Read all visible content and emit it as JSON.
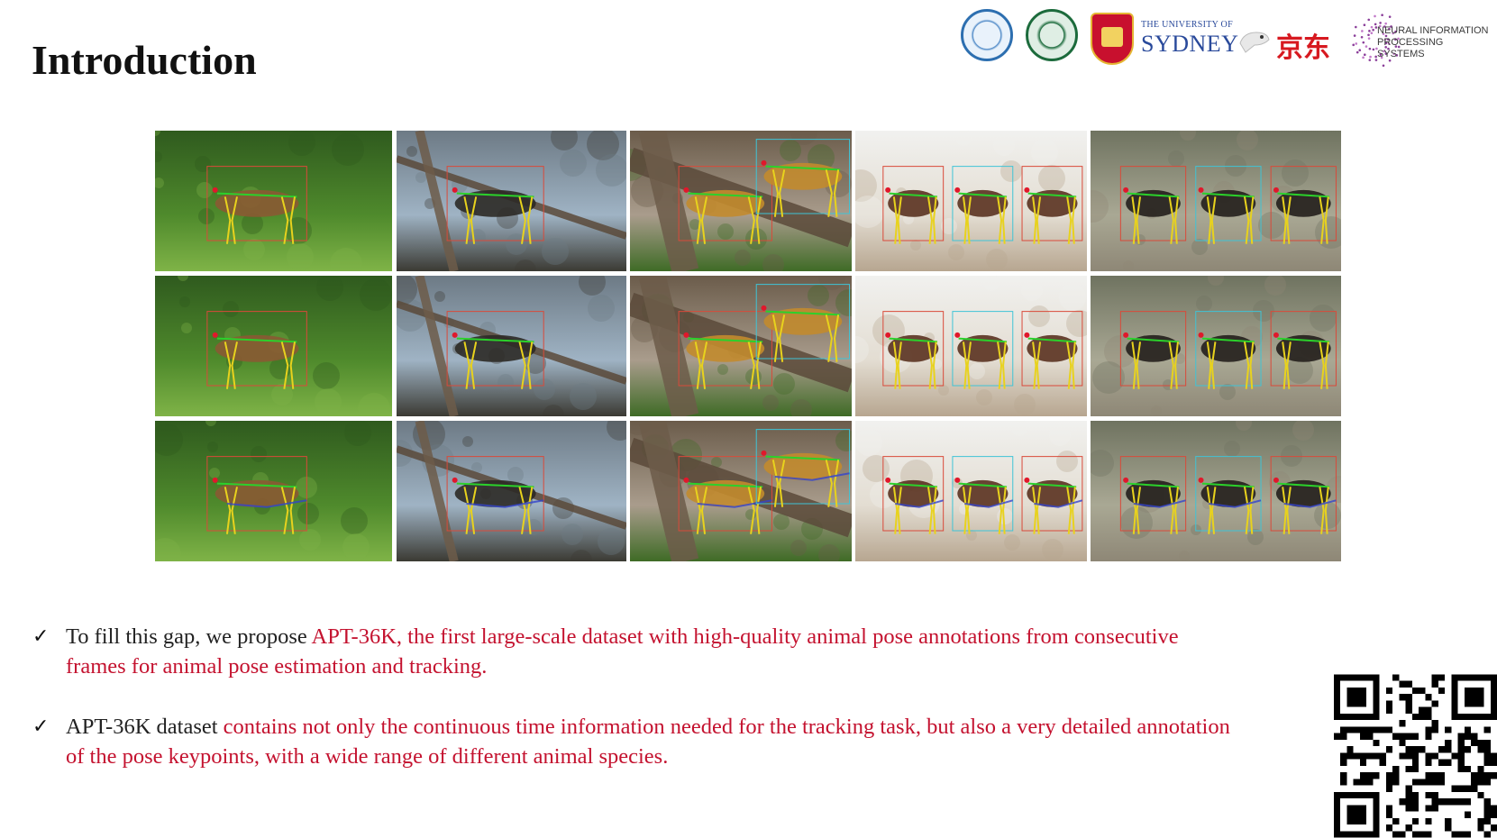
{
  "slide": {
    "title": "Introduction"
  },
  "logos": {
    "university_of_sydney_line1": "THE UNIVERSITY OF",
    "university_of_sydney_line2": "SYDNEY",
    "jd_text": "京东",
    "neurips_line1": "NEURAL INFORMATION",
    "neurips_line2": "PROCESSING SYSTEMS"
  },
  "figure": {
    "columns": [
      "deer",
      "monkey",
      "monkeys",
      "horses",
      "dogs"
    ],
    "rows": 3
  },
  "bullets": [
    {
      "check": "✓",
      "plain": "To fill this gap, we propose ",
      "highlight": "APT-36K,  the first large-scale dataset with high-quality animal pose annotations from consecutive frames for animal pose estimation and tracking."
    },
    {
      "check": "✓",
      "plain": "APT-36K dataset ",
      "highlight": "contains not only the continuous time information needed for the tracking task, but also a very detailed annotation of the pose keypoints, with a wide range of different animal species."
    }
  ],
  "colors": {
    "highlight": "#c4122f",
    "text": "#222222",
    "skeleton_leg": "#e8d21d",
    "skeleton_body": "#2bd12b",
    "keypoint_head": "#e0182b",
    "bbox": "#d94a3a"
  }
}
